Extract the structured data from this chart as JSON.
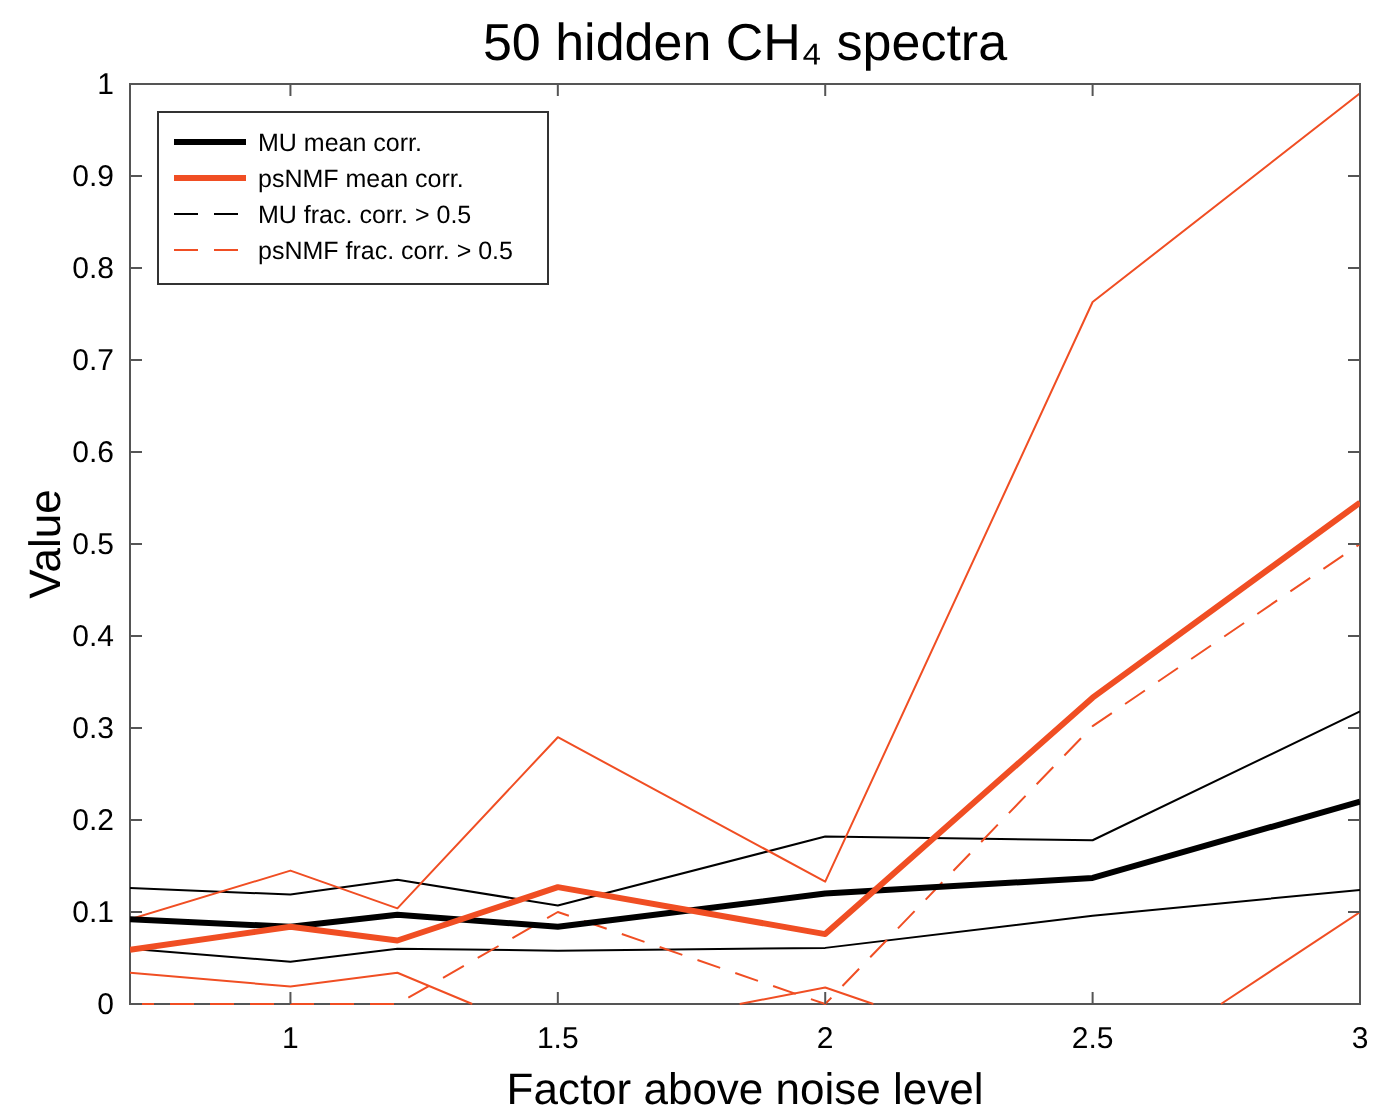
{
  "chart_data": {
    "type": "line",
    "title": "50 hidden CH₄ spectra",
    "xlabel": "Factor above noise level",
    "ylabel": "Value",
    "x": [
      0.7,
      1,
      1.2,
      1.5,
      2,
      2.5,
      3
    ],
    "xlim": [
      0.7,
      3
    ],
    "xticks": [
      1,
      1.5,
      2,
      2.5,
      3
    ],
    "ylim": [
      0,
      1
    ],
    "yticks": [
      0,
      0.1,
      0.2,
      0.3,
      0.4,
      0.5,
      0.6,
      0.7,
      0.8,
      0.9,
      1
    ],
    "grid": false,
    "legend": "top left",
    "marker": "none",
    "series": [
      {
        "name": "MU frac. corr. > 0.5",
        "color": "#000000",
        "line_style": "dashed",
        "values": [
          null,
          null,
          null,
          null,
          null,
          null,
          null
        ]
      },
      {
        "color": "#000000",
        "line_style": "solid",
        "values": [
          0.126,
          0.119,
          0.135,
          0.107,
          0.182,
          0.178,
          0.318
        ]
      },
      {
        "color": "#000000",
        "line_style": "solid",
        "values": [
          0.06,
          0.046,
          0.06,
          0.058,
          0.061,
          0.096,
          0.124
        ]
      },
      {
        "color": "#f04e23",
        "line_style": "solid",
        "values": [
          0.092,
          0.145,
          0.104,
          0.29,
          0.133,
          0.763,
          0.99
        ]
      },
      {
        "color": "#f04e23",
        "line_style": "solid",
        "x": [
          0.7,
          1,
          1.2,
          1.34,
          1.5,
          1.84,
          2,
          2.09,
          2.5,
          2.74,
          3
        ],
        "values": [
          0.034,
          0.019,
          0.034,
          0,
          null,
          0,
          0.018,
          0,
          null,
          0,
          0.1
        ]
      },
      {
        "name": "psNMF frac. corr. > 0.5",
        "color": "#f04e23",
        "line_style": "dashed",
        "values": [
          0,
          0,
          0,
          0.1,
          0,
          0.302,
          0.5
        ]
      },
      {
        "name": "MU mean corr.",
        "color": "#000000",
        "line_style": "solid",
        "values": [
          0.092,
          0.084,
          0.097,
          0.084,
          0.12,
          0.137,
          0.22
        ]
      },
      {
        "name": "psNMF mean corr.",
        "color": "#f04e23",
        "line_style": "solid",
        "values": [
          0.059,
          0.084,
          0.069,
          0.127,
          0.076,
          0.333,
          0.545
        ]
      }
    ]
  }
}
